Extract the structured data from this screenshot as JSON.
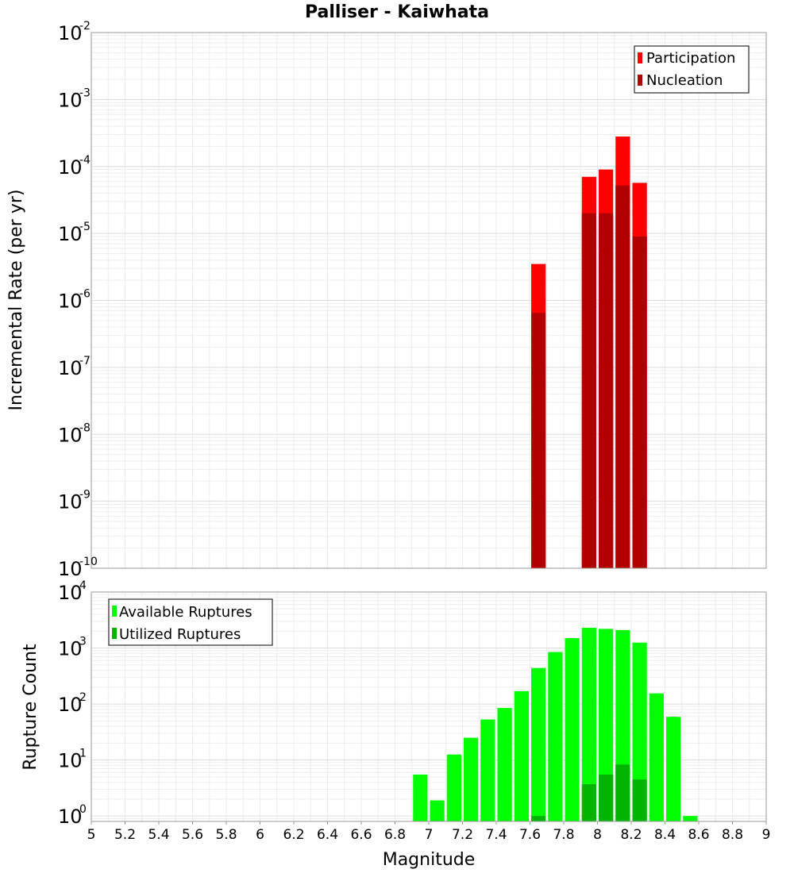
{
  "chart_data": [
    {
      "type": "bar",
      "title": "Palliser - Kaiwhata",
      "xlabel": "",
      "ylabel": "Incremental Rate (per yr)",
      "yscale": "log",
      "ylim": [
        1e-10,
        0.01
      ],
      "xlim": [
        5,
        9
      ],
      "bin_width": 0.1,
      "legend_position": "top-right",
      "grid": true,
      "series": [
        {
          "name": "Participation",
          "color": "#ff0000",
          "x": [
            7.65,
            7.95,
            8.05,
            8.15,
            8.25
          ],
          "values": [
            3.5e-06,
            7e-05,
            9e-05,
            0.00028,
            5.7e-05
          ]
        },
        {
          "name": "Nucleation",
          "color": "#b00000",
          "x": [
            7.65,
            7.95,
            8.05,
            8.15,
            8.25
          ],
          "values": [
            6.5e-07,
            2e-05,
            2e-05,
            5.2e-05,
            9e-06
          ]
        }
      ]
    },
    {
      "type": "bar",
      "title": "",
      "xlabel": "Magnitude",
      "ylabel": "Rupture Count",
      "yscale": "log",
      "ylim": [
        0.8,
        10000
      ],
      "xlim": [
        5,
        9
      ],
      "bin_width": 0.1,
      "legend_position": "top-left",
      "grid": true,
      "xticks": [
        "5",
        "5.2",
        "5.4",
        "5.6",
        "5.8",
        "6",
        "6.2",
        "6.4",
        "6.6",
        "6.8",
        "7",
        "7.2",
        "7.4",
        "7.6",
        "7.8",
        "8",
        "8.2",
        "8.4",
        "8.6",
        "8.8",
        "9"
      ],
      "series": [
        {
          "name": "Available Ruptures",
          "color": "#00ff00",
          "x": [
            6.95,
            7.05,
            7.15,
            7.25,
            7.35,
            7.45,
            7.55,
            7.65,
            7.75,
            7.85,
            7.95,
            8.05,
            8.15,
            8.25,
            8.35,
            8.45,
            8.55
          ],
          "values": [
            5.5,
            1.9,
            12.5,
            25,
            53,
            85,
            170,
            440,
            850,
            1500,
            2300,
            2200,
            2100,
            1250,
            155,
            59,
            1
          ]
        },
        {
          "name": "Utilized Ruptures",
          "color": "#00b400",
          "x": [
            7.65,
            7.95,
            8.05,
            8.15,
            8.25
          ],
          "values": [
            1,
            3.7,
            5.5,
            8.3,
            4.5
          ]
        }
      ]
    }
  ]
}
